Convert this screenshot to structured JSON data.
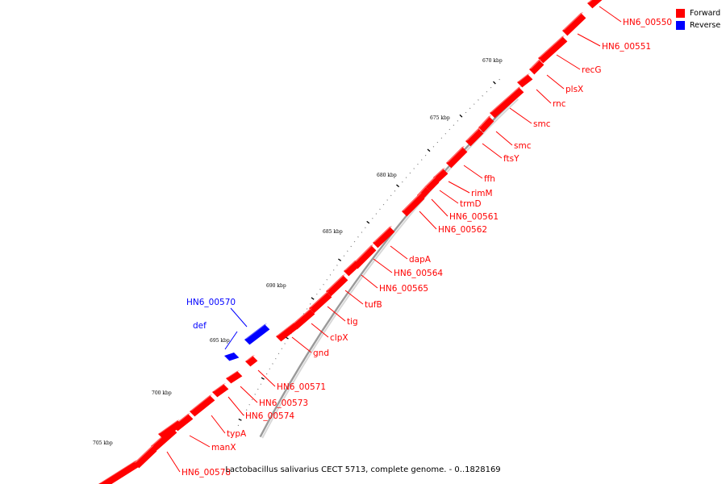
{
  "caption": "Lactobacillus salivarius CECT 5713, complete genome. - 0..1828169",
  "legend": [
    {
      "label": "Forward",
      "color": "#ff0000"
    },
    {
      "label": "Reverse",
      "color": "#0000ff"
    }
  ],
  "colors": {
    "forward": "#ff0000",
    "forward_dark": "#a80000",
    "forward_light": "#ff6a6a",
    "reverse": "#0000ff",
    "reverse_dark": "#0000a0",
    "reverse_light": "#5a5aff",
    "backbone": "#9a9a9a"
  },
  "kbp_labels": [
    "670 kbp",
    "675 kbp",
    "680 kbp",
    "685 kbp",
    "690 kbp",
    "695 kbp",
    "700 kbp",
    "705 kbp"
  ],
  "genes": [
    {
      "name": "HN6_00550",
      "strand": "forward"
    },
    {
      "name": "HN6_00551",
      "strand": "forward"
    },
    {
      "name": "recG",
      "strand": "forward"
    },
    {
      "name": "plsX",
      "strand": "forward"
    },
    {
      "name": "rnc",
      "strand": "forward"
    },
    {
      "name": "smc",
      "strand": "forward"
    },
    {
      "name": "smc",
      "strand": "forward"
    },
    {
      "name": "ftsY",
      "strand": "forward"
    },
    {
      "name": "ffh",
      "strand": "forward"
    },
    {
      "name": "rimM",
      "strand": "forward"
    },
    {
      "name": "trmD",
      "strand": "forward"
    },
    {
      "name": "HN6_00561",
      "strand": "forward"
    },
    {
      "name": "HN6_00562",
      "strand": "forward"
    },
    {
      "name": "dapA",
      "strand": "forward"
    },
    {
      "name": "HN6_00564",
      "strand": "forward"
    },
    {
      "name": "HN6_00565",
      "strand": "forward"
    },
    {
      "name": "tufB",
      "strand": "forward"
    },
    {
      "name": "tig",
      "strand": "forward"
    },
    {
      "name": "clpX",
      "strand": "forward"
    },
    {
      "name": "gnd",
      "strand": "forward"
    },
    {
      "name": "HN6_00570",
      "strand": "reverse"
    },
    {
      "name": "def",
      "strand": "reverse"
    },
    {
      "name": "HN6_00571",
      "strand": "forward"
    },
    {
      "name": "HN6_00573",
      "strand": "forward"
    },
    {
      "name": "HN6_00574",
      "strand": "forward"
    },
    {
      "name": "typA",
      "strand": "forward"
    },
    {
      "name": "manX",
      "strand": "forward"
    },
    {
      "name": "HN6_00578",
      "strand": "forward"
    }
  ]
}
